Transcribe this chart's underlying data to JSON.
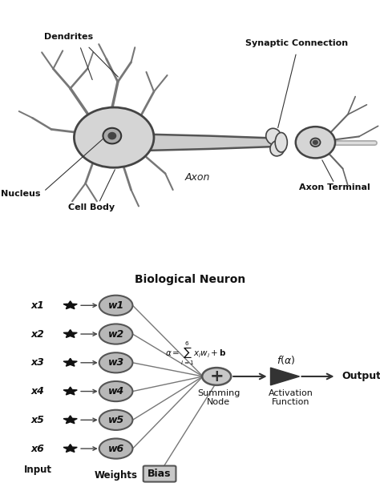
{
  "bg_color": "#ffffff",
  "neuron_label": "Biological Neuron",
  "top_labels": {
    "dendrites": "Dendrites",
    "nucleus": "Nucleus",
    "cell_body": "Cell Body",
    "axon": "Axon",
    "synaptic": "Synaptic Connection",
    "axon_terminal": "Axon Terminal"
  },
  "inputs": [
    "x1",
    "x2",
    "x3",
    "x4",
    "x5",
    "x6"
  ],
  "weights": [
    "w1",
    "w2",
    "w3",
    "w4",
    "w5",
    "w6"
  ],
  "input_label": "Input",
  "weights_label": "Weights",
  "summing_label": "Summing\nNode",
  "activation_label": "Activation\nFunction",
  "output_label": "Output",
  "bias_label": "Bias",
  "circle_color": "#b8b8b8",
  "circle_edge": "#555555",
  "text_color": "#000000",
  "line_color": "#555555",
  "star_color": "#111111",
  "arrow_color": "#333333"
}
